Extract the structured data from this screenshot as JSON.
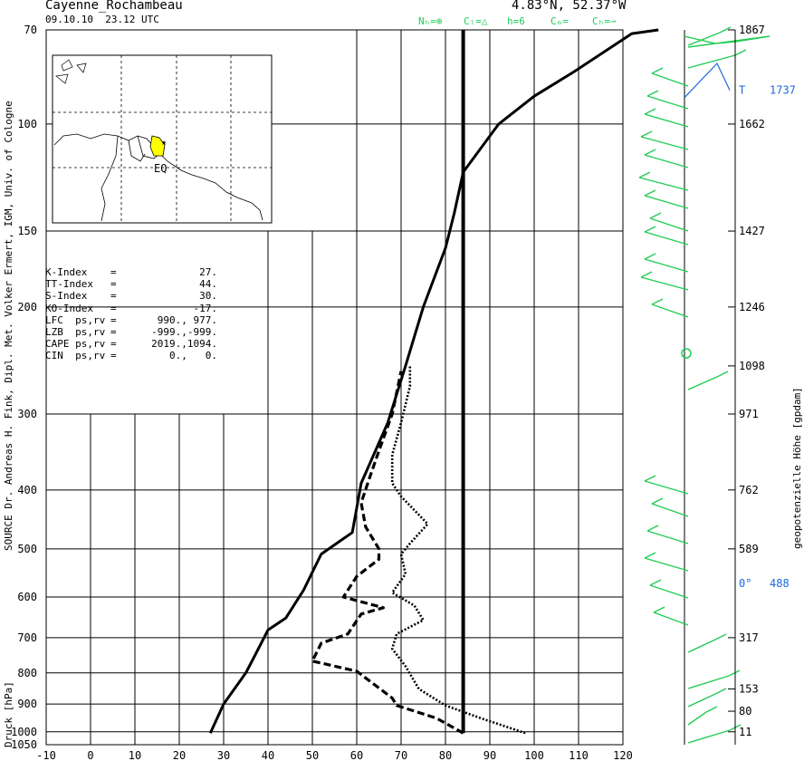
{
  "header": {
    "station": "Cayenne_Rochambeau",
    "datetime": "09.10.10  23.12 UTC",
    "coords": "4.83°N, 52.37°W"
  },
  "cloud_legend": [
    "Nₕ=⊕",
    "Cₗ=△",
    "h=6",
    "Cₘ=",
    "Cₕ=⇀"
  ],
  "side_label": "SOURCE Dr. Andreas H. Fink, Dipl. Met. Volker Ermert, IGM, Univ. of Cologne",
  "indices": [
    {
      "label": "K-Index",
      "sep": "=",
      "value": "27."
    },
    {
      "label": "TT-Index",
      "sep": "=",
      "value": "44."
    },
    {
      "label": "S-Index",
      "sep": "=",
      "value": "30."
    },
    {
      "label": "KO-Index",
      "sep": "=",
      "value": "-17."
    },
    {
      "label": "LFC  ps,rv",
      "sep": "=",
      "value": "990., 977."
    },
    {
      "label": "LZB  ps,rv",
      "sep": "=",
      "value": "-999.,-999."
    },
    {
      "label": "CAPE ps,rv",
      "sep": "=",
      "value": "2019.,1094."
    },
    {
      "label": "CIN  ps,rv",
      "sep": "=",
      "value": "0.,   0."
    }
  ],
  "map_labels": {
    "equator": "EQ"
  },
  "colors": {
    "grid": "#000000",
    "wind": "#22cc55",
    "tropo": "#1a66dd",
    "highlight": "#ffff00"
  },
  "chart_data": {
    "type": "line",
    "xlabel": "",
    "ylabel": "Druck [hPa]",
    "y2label": "geopotenzielle Höhe [gpdam]",
    "xlim": [
      -10,
      120
    ],
    "x_ticks": [
      -10,
      0,
      10,
      20,
      30,
      40,
      50,
      60,
      70,
      80,
      90,
      100,
      110,
      120
    ],
    "y_scale": "log",
    "ylim": [
      1050,
      70
    ],
    "y_ticks": [
      70,
      100,
      150,
      200,
      300,
      400,
      500,
      600,
      700,
      800,
      900,
      1000,
      1050
    ],
    "height_ticks": [
      {
        "p": 70,
        "label": "1867"
      },
      {
        "p": 100,
        "label": "1662"
      },
      {
        "p": 150,
        "label": "1427"
      },
      {
        "p": 200,
        "label": "1246"
      },
      {
        "p": 250,
        "label": "1098"
      },
      {
        "p": 300,
        "label": "971"
      },
      {
        "p": 400,
        "label": "762"
      },
      {
        "p": 500,
        "label": "589"
      },
      {
        "p": 700,
        "label": "317"
      },
      {
        "p": 850,
        "label": "153"
      },
      {
        "p": 925,
        "label": "80"
      },
      {
        "p": 1000,
        "label": "11"
      }
    ],
    "markers": [
      {
        "label": "T",
        "value": "1737",
        "p": 88
      },
      {
        "label": "0°",
        "value": "488",
        "p": 570
      }
    ],
    "series": [
      {
        "style": "solid",
        "points": [
          [
            27,
            1005
          ],
          [
            30,
            900
          ],
          [
            35,
            800
          ],
          [
            37,
            750
          ],
          [
            40,
            680
          ],
          [
            44,
            650
          ],
          [
            48,
            585
          ],
          [
            52,
            510
          ],
          [
            59,
            470
          ],
          [
            61,
            390
          ],
          [
            67,
            310
          ],
          [
            71,
            250
          ],
          [
            75,
            200
          ],
          [
            80,
            160
          ],
          [
            82,
            140
          ],
          [
            84,
            120
          ],
          [
            92,
            100
          ],
          [
            100,
            90
          ],
          [
            109,
            82
          ],
          [
            122,
            71
          ],
          [
            128,
            70
          ]
        ]
      },
      {
        "style": "dashed",
        "points": [
          [
            84,
            1005
          ],
          [
            78,
            950
          ],
          [
            69,
            905
          ],
          [
            68,
            880
          ],
          [
            60,
            795
          ],
          [
            50,
            765
          ],
          [
            52,
            715
          ],
          [
            58,
            690
          ],
          [
            61,
            640
          ],
          [
            66,
            625
          ],
          [
            57,
            600
          ],
          [
            60,
            555
          ],
          [
            65,
            520
          ],
          [
            65,
            500
          ],
          [
            62,
            460
          ],
          [
            61,
            420
          ],
          [
            63,
            380
          ],
          [
            65,
            345
          ],
          [
            68,
            300
          ],
          [
            70,
            255
          ]
        ]
      },
      {
        "style": "dotted",
        "points": [
          [
            98,
            1005
          ],
          [
            88,
            950
          ],
          [
            80,
            905
          ],
          [
            74,
            850
          ],
          [
            71,
            780
          ],
          [
            68,
            730
          ],
          [
            69,
            690
          ],
          [
            75,
            655
          ],
          [
            73,
            620
          ],
          [
            68,
            590
          ],
          [
            71,
            550
          ],
          [
            70,
            510
          ],
          [
            72,
            490
          ],
          [
            76,
            455
          ],
          [
            70,
            410
          ],
          [
            68,
            390
          ],
          [
            68,
            350
          ],
          [
            70,
            310
          ],
          [
            72,
            270
          ],
          [
            72,
            250
          ]
        ]
      },
      {
        "style": "vertical",
        "points": [
          [
            84,
            1005
          ],
          [
            84,
            70
          ]
        ]
      }
    ]
  }
}
